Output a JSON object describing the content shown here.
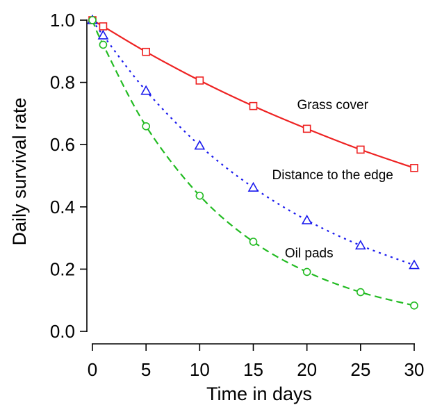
{
  "chart_data": {
    "type": "line",
    "title": "",
    "xlabel": "Time in days",
    "ylabel": "Daily survival rate",
    "xlim": [
      0,
      30
    ],
    "ylim": [
      0,
      1.0
    ],
    "xticks": [
      0,
      5,
      10,
      15,
      20,
      25,
      30
    ],
    "xtick_labels": [
      "0",
      "5",
      "10",
      "15",
      "20",
      "25",
      "30"
    ],
    "yticks": [
      0,
      0.2,
      0.4,
      0.6,
      0.8,
      1.0
    ],
    "ytick_labels": [
      "0.0",
      "0.2",
      "0.4",
      "0.6",
      "0.8",
      "1.0"
    ],
    "grid": false,
    "legend": "none",
    "annotations": [
      {
        "text": "Grass cover",
        "x": 22.4,
        "y": 0.73
      },
      {
        "text": "Distance to the edge",
        "x": 22.4,
        "y": 0.505
      },
      {
        "text": "Oil pads",
        "x": 20.2,
        "y": 0.253
      }
    ],
    "series": [
      {
        "label": "Grass cover",
        "color": "#ee2222",
        "dash": "solid",
        "marker": "square",
        "x": [
          0,
          1,
          5,
          10,
          15,
          20,
          25,
          30
        ],
        "y": [
          1.0,
          0.98,
          0.898,
          0.806,
          0.724,
          0.651,
          0.584,
          0.525
        ]
      },
      {
        "label": "Distance to the edge",
        "color": "#1a1aee",
        "dash": "dotted",
        "marker": "triangle",
        "x": [
          0,
          1,
          5,
          10,
          15,
          20,
          25,
          30
        ],
        "y": [
          1.0,
          0.951,
          0.773,
          0.597,
          0.462,
          0.357,
          0.276,
          0.213
        ]
      },
      {
        "label": "Oil pads",
        "color": "#22bb22",
        "dash": "dashed",
        "marker": "circle",
        "x": [
          0,
          1,
          5,
          10,
          15,
          20,
          25,
          30
        ],
        "y": [
          1.0,
          0.921,
          0.659,
          0.436,
          0.288,
          0.191,
          0.126,
          0.083
        ]
      }
    ]
  }
}
